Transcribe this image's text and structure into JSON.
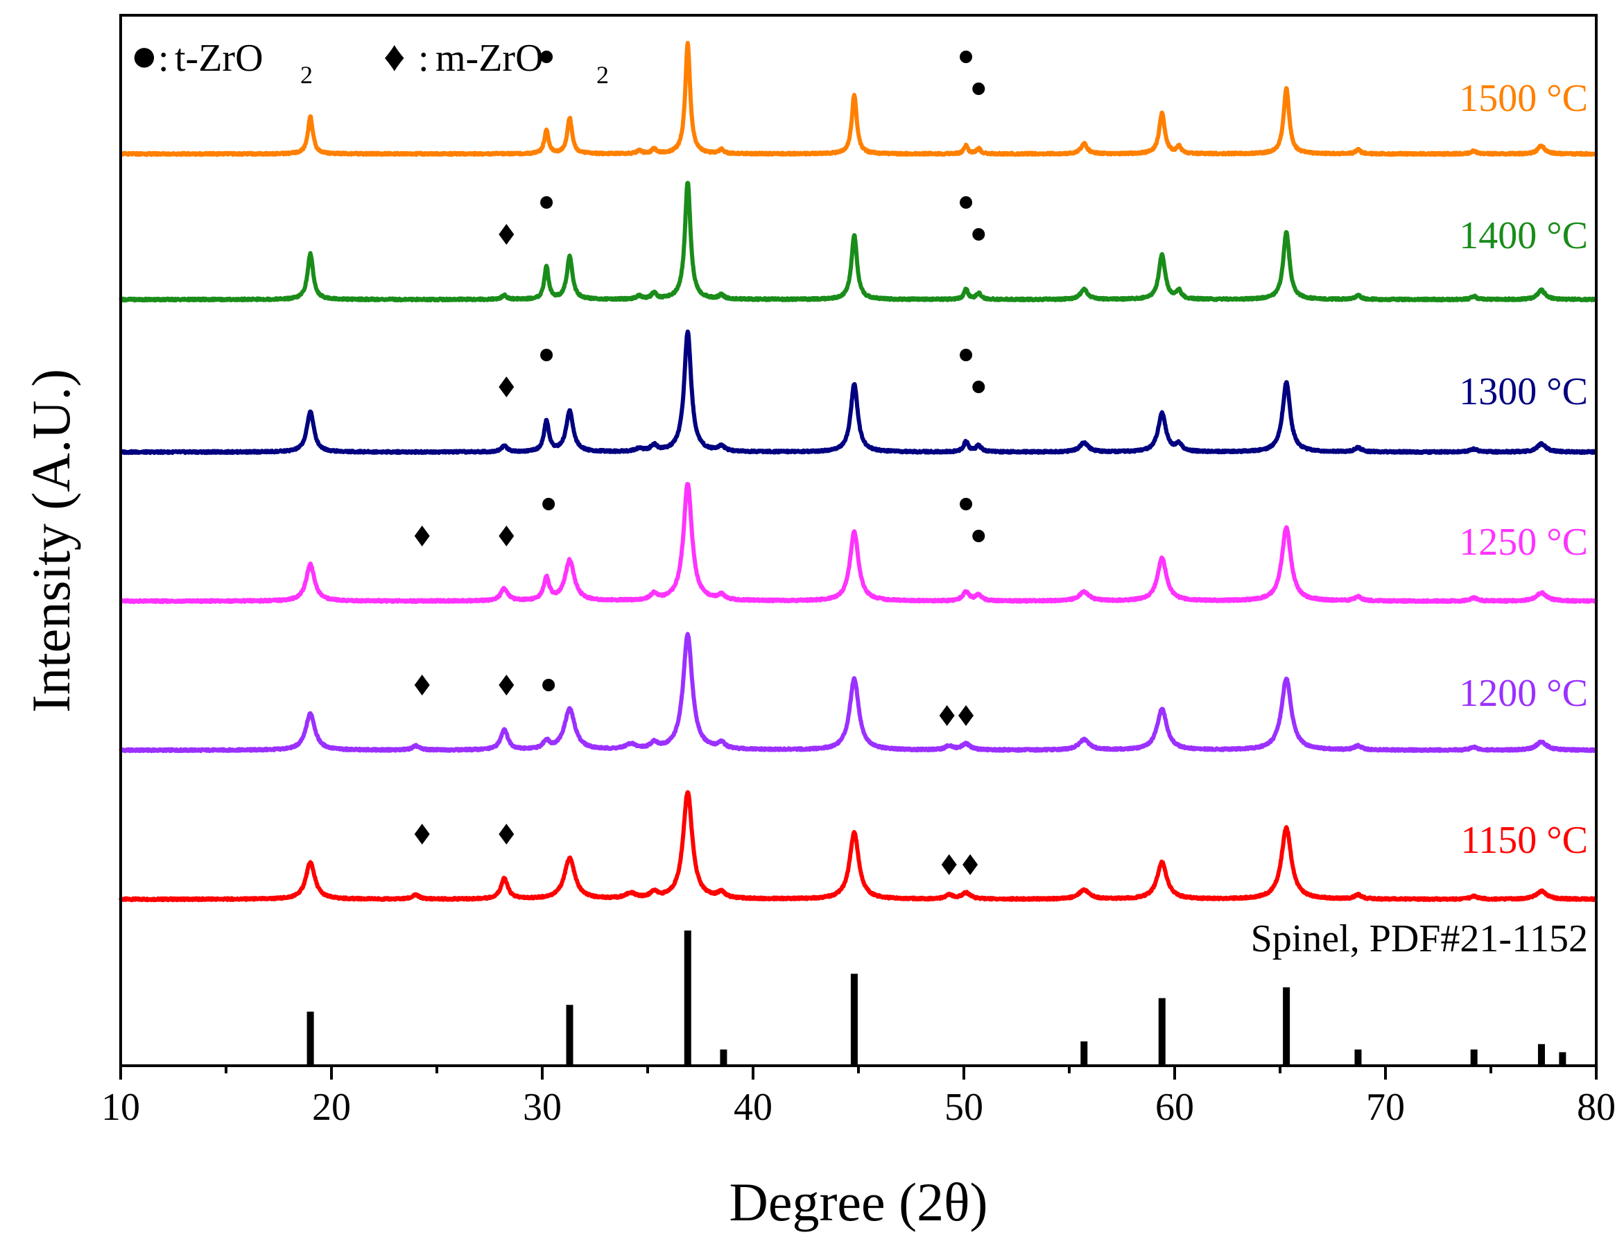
{
  "chart_data": {
    "type": "line",
    "subtype": "stacked XRD patterns with reference stick pattern",
    "xlabel": "Degree (2θ)",
    "ylabel": "Intensity (A.U.)",
    "xlim": [
      10,
      80
    ],
    "x_ticks": [
      10,
      20,
      30,
      40,
      50,
      60,
      70,
      80
    ],
    "x_minor_ticks": [
      15,
      25,
      35,
      45,
      55,
      65,
      75
    ],
    "grid": false,
    "legend_placement": "top-left",
    "legend": [
      {
        "marker": "circle",
        "symbol": "●",
        "label": "t-ZrO",
        "sub": "2"
      },
      {
        "marker": "diamond",
        "symbol": "♦",
        "label": "m-ZrO",
        "sub": "2"
      }
    ],
    "reference": {
      "label": "Spinel, PDF#21-1152",
      "color": "#000000",
      "sticks": [
        {
          "x": 19.0,
          "intensity": 40
        },
        {
          "x": 31.3,
          "intensity": 45
        },
        {
          "x": 36.9,
          "intensity": 100
        },
        {
          "x": 38.6,
          "intensity": 12
        },
        {
          "x": 44.8,
          "intensity": 68
        },
        {
          "x": 55.7,
          "intensity": 18
        },
        {
          "x": 59.4,
          "intensity": 50
        },
        {
          "x": 65.3,
          "intensity": 58
        },
        {
          "x": 68.7,
          "intensity": 12
        },
        {
          "x": 74.2,
          "intensity": 12
        },
        {
          "x": 77.4,
          "intensity": 16
        },
        {
          "x": 78.4,
          "intensity": 10
        }
      ]
    },
    "series": [
      {
        "name": "1150 °C",
        "color": "#ff0000",
        "peaks": [
          {
            "x": 19.0,
            "h": 36,
            "w": 0.26
          },
          {
            "x": 24.0,
            "h": 4,
            "w": 0.2
          },
          {
            "x": 28.2,
            "h": 20,
            "w": 0.2
          },
          {
            "x": 31.3,
            "h": 40,
            "w": 0.3
          },
          {
            "x": 34.2,
            "h": 5,
            "w": 0.3
          },
          {
            "x": 35.3,
            "h": 6,
            "w": 0.2
          },
          {
            "x": 36.9,
            "h": 105,
            "w": 0.26
          },
          {
            "x": 38.5,
            "h": 6,
            "w": 0.2
          },
          {
            "x": 44.8,
            "h": 65,
            "w": 0.26
          },
          {
            "x": 49.3,
            "h": 4,
            "w": 0.2
          },
          {
            "x": 50.1,
            "h": 6,
            "w": 0.25
          },
          {
            "x": 55.7,
            "h": 9,
            "w": 0.3
          },
          {
            "x": 59.4,
            "h": 36,
            "w": 0.28
          },
          {
            "x": 65.3,
            "h": 70,
            "w": 0.28
          },
          {
            "x": 68.7,
            "h": 4,
            "w": 0.2
          },
          {
            "x": 74.2,
            "h": 3,
            "w": 0.2
          },
          {
            "x": 77.4,
            "h": 8,
            "w": 0.3
          }
        ],
        "markers": [
          {
            "type": "diamond",
            "x": 24.3,
            "level": 1
          },
          {
            "type": "diamond",
            "x": 28.3,
            "level": 1
          },
          {
            "type": "diamond",
            "x": 49.3,
            "level": 0
          },
          {
            "type": "diamond",
            "x": 50.3,
            "level": 0
          }
        ]
      },
      {
        "name": "1200 °C",
        "color": "#9b30ff",
        "peaks": [
          {
            "x": 19.0,
            "h": 36,
            "w": 0.26
          },
          {
            "x": 24.0,
            "h": 4,
            "w": 0.2
          },
          {
            "x": 28.2,
            "h": 20,
            "w": 0.2
          },
          {
            "x": 30.2,
            "h": 8,
            "w": 0.18
          },
          {
            "x": 31.3,
            "h": 40,
            "w": 0.3
          },
          {
            "x": 34.2,
            "h": 5,
            "w": 0.3
          },
          {
            "x": 35.3,
            "h": 6,
            "w": 0.2
          },
          {
            "x": 36.9,
            "h": 113,
            "w": 0.26
          },
          {
            "x": 38.5,
            "h": 6,
            "w": 0.2
          },
          {
            "x": 44.8,
            "h": 70,
            "w": 0.26
          },
          {
            "x": 49.3,
            "h": 4,
            "w": 0.2
          },
          {
            "x": 50.1,
            "h": 6,
            "w": 0.25
          },
          {
            "x": 55.7,
            "h": 10,
            "w": 0.3
          },
          {
            "x": 59.4,
            "h": 40,
            "w": 0.28
          },
          {
            "x": 65.3,
            "h": 70,
            "w": 0.28
          },
          {
            "x": 68.7,
            "h": 4,
            "w": 0.2
          },
          {
            "x": 74.2,
            "h": 3,
            "w": 0.2
          },
          {
            "x": 77.4,
            "h": 8,
            "w": 0.3
          }
        ],
        "markers": [
          {
            "type": "diamond",
            "x": 24.3,
            "level": 1
          },
          {
            "type": "diamond",
            "x": 28.3,
            "level": 1
          },
          {
            "type": "circle",
            "x": 30.3,
            "level": 1
          },
          {
            "type": "diamond",
            "x": 49.2,
            "level": 0
          },
          {
            "type": "diamond",
            "x": 50.1,
            "level": 0
          }
        ]
      },
      {
        "name": "1250 °C",
        "color": "#ff33ff",
        "peaks": [
          {
            "x": 19.0,
            "h": 36,
            "w": 0.24
          },
          {
            "x": 28.2,
            "h": 12,
            "w": 0.2
          },
          {
            "x": 30.2,
            "h": 22,
            "w": 0.16
          },
          {
            "x": 31.3,
            "h": 40,
            "w": 0.26
          },
          {
            "x": 35.3,
            "h": 6,
            "w": 0.2
          },
          {
            "x": 36.9,
            "h": 115,
            "w": 0.24
          },
          {
            "x": 38.5,
            "h": 5,
            "w": 0.2
          },
          {
            "x": 44.8,
            "h": 68,
            "w": 0.24
          },
          {
            "x": 50.1,
            "h": 9,
            "w": 0.18
          },
          {
            "x": 50.7,
            "h": 6,
            "w": 0.18
          },
          {
            "x": 55.7,
            "h": 9,
            "w": 0.28
          },
          {
            "x": 59.4,
            "h": 42,
            "w": 0.26
          },
          {
            "x": 65.3,
            "h": 72,
            "w": 0.26
          },
          {
            "x": 68.7,
            "h": 4,
            "w": 0.2
          },
          {
            "x": 74.2,
            "h": 3,
            "w": 0.2
          },
          {
            "x": 77.4,
            "h": 8,
            "w": 0.3
          }
        ],
        "markers": [
          {
            "type": "diamond",
            "x": 24.3,
            "level": 1
          },
          {
            "type": "diamond",
            "x": 28.3,
            "level": 1
          },
          {
            "type": "circle",
            "x": 30.3,
            "level": 2
          },
          {
            "type": "circle",
            "x": 50.1,
            "level": 2
          },
          {
            "type": "circle",
            "x": 50.7,
            "level": 1
          }
        ]
      },
      {
        "name": "1300 °C",
        "color": "#000080",
        "peaks": [
          {
            "x": 19.0,
            "h": 40,
            "w": 0.2
          },
          {
            "x": 28.2,
            "h": 6,
            "w": 0.16
          },
          {
            "x": 30.2,
            "h": 30,
            "w": 0.14
          },
          {
            "x": 31.3,
            "h": 40,
            "w": 0.2
          },
          {
            "x": 34.6,
            "h": 3,
            "w": 0.2
          },
          {
            "x": 35.3,
            "h": 6,
            "w": 0.18
          },
          {
            "x": 36.9,
            "h": 118,
            "w": 0.2
          },
          {
            "x": 38.5,
            "h": 5,
            "w": 0.18
          },
          {
            "x": 44.8,
            "h": 67,
            "w": 0.2
          },
          {
            "x": 50.1,
            "h": 10,
            "w": 0.14
          },
          {
            "x": 50.7,
            "h": 6,
            "w": 0.16
          },
          {
            "x": 55.7,
            "h": 9,
            "w": 0.24
          },
          {
            "x": 59.4,
            "h": 38,
            "w": 0.22
          },
          {
            "x": 60.2,
            "h": 7,
            "w": 0.18
          },
          {
            "x": 65.3,
            "h": 68,
            "w": 0.22
          },
          {
            "x": 68.7,
            "h": 4,
            "w": 0.2
          },
          {
            "x": 74.2,
            "h": 3,
            "w": 0.2
          },
          {
            "x": 77.4,
            "h": 8,
            "w": 0.26
          }
        ],
        "markers": [
          {
            "type": "diamond",
            "x": 28.3,
            "level": 1
          },
          {
            "type": "circle",
            "x": 30.2,
            "level": 2
          },
          {
            "type": "circle",
            "x": 50.1,
            "level": 2
          },
          {
            "type": "circle",
            "x": 50.7,
            "level": 1
          }
        ]
      },
      {
        "name": "1400 °C",
        "color": "#1a8c1a",
        "peaks": [
          {
            "x": 19.0,
            "h": 45,
            "w": 0.16
          },
          {
            "x": 28.2,
            "h": 4,
            "w": 0.14
          },
          {
            "x": 30.2,
            "h": 32,
            "w": 0.12
          },
          {
            "x": 31.3,
            "h": 42,
            "w": 0.16
          },
          {
            "x": 34.6,
            "h": 3,
            "w": 0.16
          },
          {
            "x": 35.3,
            "h": 6,
            "w": 0.14
          },
          {
            "x": 36.9,
            "h": 115,
            "w": 0.16
          },
          {
            "x": 38.5,
            "h": 4,
            "w": 0.14
          },
          {
            "x": 44.8,
            "h": 63,
            "w": 0.16
          },
          {
            "x": 50.1,
            "h": 10,
            "w": 0.12
          },
          {
            "x": 50.7,
            "h": 6,
            "w": 0.14
          },
          {
            "x": 55.7,
            "h": 10,
            "w": 0.2
          },
          {
            "x": 59.4,
            "h": 44,
            "w": 0.18
          },
          {
            "x": 60.2,
            "h": 8,
            "w": 0.14
          },
          {
            "x": 65.3,
            "h": 66,
            "w": 0.18
          },
          {
            "x": 68.7,
            "h": 4,
            "w": 0.16
          },
          {
            "x": 74.2,
            "h": 3,
            "w": 0.16
          },
          {
            "x": 77.4,
            "h": 9,
            "w": 0.22
          }
        ],
        "markers": [
          {
            "type": "diamond",
            "x": 28.3,
            "level": 1
          },
          {
            "type": "circle",
            "x": 30.2,
            "level": 2
          },
          {
            "type": "circle",
            "x": 50.1,
            "level": 2
          },
          {
            "type": "circle",
            "x": 50.7,
            "level": 1
          }
        ]
      },
      {
        "name": "1500 °C",
        "color": "#ff8000",
        "peaks": [
          {
            "x": 19.0,
            "h": 37,
            "w": 0.14
          },
          {
            "x": 30.2,
            "h": 23,
            "w": 0.12
          },
          {
            "x": 31.3,
            "h": 35,
            "w": 0.14
          },
          {
            "x": 34.6,
            "h": 3,
            "w": 0.14
          },
          {
            "x": 35.3,
            "h": 5,
            "w": 0.12
          },
          {
            "x": 36.9,
            "h": 108,
            "w": 0.14
          },
          {
            "x": 38.5,
            "h": 4,
            "w": 0.12
          },
          {
            "x": 44.8,
            "h": 58,
            "w": 0.14
          },
          {
            "x": 50.1,
            "h": 8,
            "w": 0.12
          },
          {
            "x": 50.7,
            "h": 5,
            "w": 0.12
          },
          {
            "x": 55.7,
            "h": 10,
            "w": 0.18
          },
          {
            "x": 59.4,
            "h": 40,
            "w": 0.16
          },
          {
            "x": 60.2,
            "h": 7,
            "w": 0.12
          },
          {
            "x": 65.3,
            "h": 64,
            "w": 0.16
          },
          {
            "x": 68.7,
            "h": 4,
            "w": 0.14
          },
          {
            "x": 74.2,
            "h": 3,
            "w": 0.14
          },
          {
            "x": 77.4,
            "h": 8,
            "w": 0.2
          }
        ],
        "markers": [
          {
            "type": "circle",
            "x": 30.2,
            "level": 2
          },
          {
            "type": "circle",
            "x": 50.1,
            "level": 2
          },
          {
            "type": "circle",
            "x": 50.7,
            "level": 1
          }
        ]
      }
    ]
  }
}
